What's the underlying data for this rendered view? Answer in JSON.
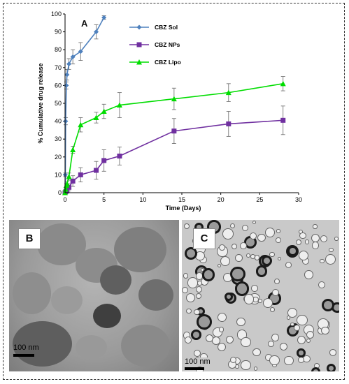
{
  "panel_a_label": "A",
  "panel_b_label": "B",
  "panel_c_label": "C",
  "scale_b": "100 nm",
  "scale_c": "100 nm",
  "chart_data": {
    "type": "line",
    "xlabel": "Time (Days)",
    "ylabel": "% Cumulative drug release",
    "xlim": [
      0,
      30
    ],
    "ylim": [
      0,
      100
    ],
    "xticks": [
      0,
      5,
      10,
      15,
      20,
      25,
      30
    ],
    "yticks": [
      0,
      10,
      20,
      30,
      40,
      50,
      60,
      70,
      80,
      90,
      100
    ],
    "grid": false,
    "legend_position": "top-right",
    "series": [
      {
        "name": "CBZ Sol",
        "color": "#4f81bd",
        "marker": "diamond",
        "x": [
          0,
          0.04,
          0.08,
          0.17,
          0.25,
          0.5,
          1,
          2,
          4,
          5
        ],
        "y": [
          0,
          10,
          40,
          60,
          66,
          72,
          76,
          79,
          90,
          98
        ],
        "err": [
          1,
          1,
          2,
          2,
          3,
          3,
          4,
          5,
          4,
          1
        ]
      },
      {
        "name": "CBZ NPs",
        "color": "#7030a0",
        "marker": "square",
        "x": [
          0,
          0.08,
          0.17,
          0.25,
          0.5,
          1,
          2,
          4,
          5,
          7,
          14,
          21,
          28
        ],
        "y": [
          0,
          0.5,
          1,
          1.5,
          3,
          6.5,
          10,
          12.5,
          18,
          20.5,
          34.5,
          38.5,
          40.5
        ],
        "err": [
          0.5,
          0.5,
          0.5,
          1,
          2,
          3,
          4,
          5,
          6,
          5,
          7,
          7,
          8
        ]
      },
      {
        "name": "CBZ Lipo",
        "color": "#00dd00",
        "marker": "triangle",
        "x": [
          0,
          0.08,
          0.17,
          0.25,
          0.5,
          1,
          2,
          4,
          5,
          7,
          14,
          21,
          28
        ],
        "y": [
          0,
          2,
          4,
          5,
          9,
          24,
          38,
          42,
          45.5,
          49,
          52.5,
          56,
          61
        ],
        "err": [
          0.5,
          1,
          1,
          1,
          2,
          2,
          4,
          3,
          4,
          7,
          6,
          5,
          4
        ]
      }
    ]
  }
}
